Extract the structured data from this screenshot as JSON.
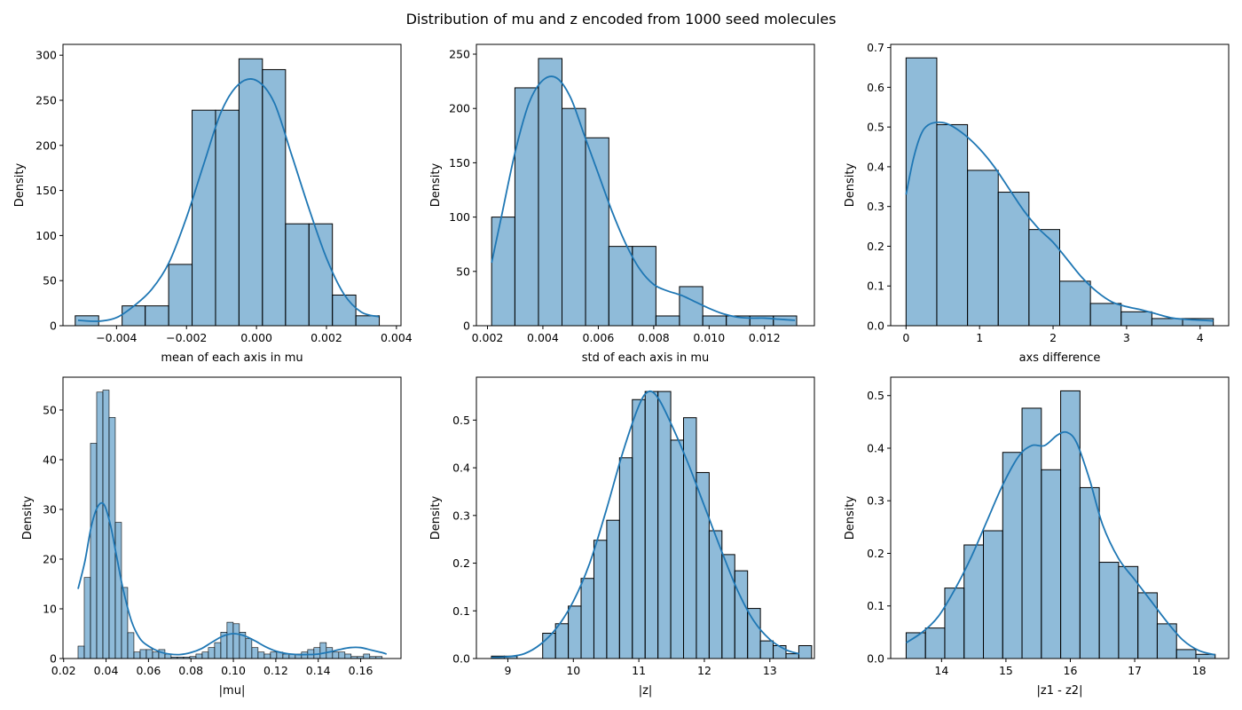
{
  "figure": {
    "title": "Distribution of mu and z encoded from 1000 seed molecules"
  },
  "colors": {
    "bar_fill": "#1f77b4",
    "bar_opacity": 0.5,
    "bar_edge": "#000000",
    "kde_line": "#1f77b4",
    "axes": "#000000"
  },
  "chart_data": [
    {
      "type": "bar",
      "histogram": true,
      "xlabel": "mean of each axis in mu",
      "ylabel": "Density",
      "xlim": [
        -0.00553,
        0.00413
      ],
      "ylim": [
        0,
        312
      ],
      "xticks": [
        -0.004,
        -0.002,
        0.0,
        0.002,
        0.004
      ],
      "xtick_labels": [
        "−0.004",
        "−0.002",
        "0.000",
        "0.002",
        "0.004"
      ],
      "yticks": [
        0,
        50,
        100,
        150,
        200,
        250,
        300
      ],
      "ytick_labels": [
        "0",
        "50",
        "100",
        "150",
        "200",
        "250",
        "300"
      ],
      "bin_edges": [
        -0.00518,
        -0.00451,
        -0.00384,
        -0.00318,
        -0.00251,
        -0.00184,
        -0.00117,
        -0.0005,
        0.00017,
        0.00083,
        0.0015,
        0.00217,
        0.00284,
        0.00351
      ],
      "values": [
        11,
        0,
        22,
        22,
        68,
        239,
        239,
        296,
        284,
        113,
        113,
        34,
        11
      ],
      "kde": {
        "x": [
          -0.0051,
          -0.0045,
          -0.004,
          -0.0035,
          -0.003,
          -0.0025,
          -0.002,
          -0.0015,
          -0.001,
          -0.0005,
          0.0,
          0.0005,
          0.001,
          0.0015,
          0.002,
          0.0025,
          0.003,
          0.0035
        ],
        "y": [
          6,
          5,
          9,
          22,
          40,
          70,
          120,
          180,
          238,
          268,
          272,
          248,
          190,
          130,
          75,
          35,
          15,
          10
        ]
      }
    },
    {
      "type": "bar",
      "histogram": true,
      "xlabel": "std of each axis in mu",
      "ylabel": "Density",
      "xlim": [
        0.0016,
        0.0138
      ],
      "ylim": [
        0,
        259
      ],
      "xticks": [
        0.002,
        0.004,
        0.006,
        0.008,
        0.01,
        0.012
      ],
      "xtick_labels": [
        "0.002",
        "0.004",
        "0.006",
        "0.008",
        "0.010",
        "0.012"
      ],
      "yticks": [
        0,
        50,
        100,
        150,
        200,
        250
      ],
      "ytick_labels": [
        "0",
        "50",
        "100",
        "150",
        "200",
        "250"
      ],
      "bin_edges": [
        0.00215,
        0.00299,
        0.00384,
        0.00469,
        0.00554,
        0.00638,
        0.00723,
        0.00808,
        0.00893,
        0.00977,
        0.01062,
        0.01147,
        0.01232,
        0.01316
      ],
      "values": [
        100,
        219,
        246,
        200,
        173,
        73,
        73,
        9,
        36,
        9,
        9,
        9,
        9
      ],
      "kde": {
        "x": [
          0.00215,
          0.0025,
          0.003,
          0.0035,
          0.004,
          0.0045,
          0.005,
          0.0055,
          0.006,
          0.0065,
          0.007,
          0.0075,
          0.008,
          0.0085,
          0.009,
          0.0095,
          0.01,
          0.0105,
          0.011,
          0.0115,
          0.012,
          0.0125,
          0.0131
        ],
        "y": [
          58,
          100,
          160,
          205,
          226,
          228,
          210,
          175,
          140,
          105,
          75,
          52,
          38,
          32,
          28,
          22,
          16,
          11,
          8,
          7,
          7,
          6,
          5
        ]
      }
    },
    {
      "type": "bar",
      "histogram": true,
      "xlabel": "axs difference",
      "ylabel": "Density",
      "xlim": [
        -0.209,
        4.389
      ],
      "ylim": [
        0,
        0.708
      ],
      "xticks": [
        0,
        1,
        2,
        3,
        4
      ],
      "xtick_labels": [
        "0",
        "1",
        "2",
        "3",
        "4"
      ],
      "yticks": [
        0,
        0.1,
        0.2,
        0.3,
        0.4,
        0.5,
        0.6,
        0.7
      ],
      "ytick_labels": [
        "0.0",
        "0.1",
        "0.2",
        "0.3",
        "0.4",
        "0.5",
        "0.6",
        "0.7"
      ],
      "bin_edges": [
        0.0,
        0.418,
        0.836,
        1.254,
        1.672,
        2.09,
        2.508,
        2.926,
        3.344,
        3.762,
        4.18
      ],
      "values": [
        0.674,
        0.506,
        0.391,
        0.336,
        0.242,
        0.112,
        0.056,
        0.035,
        0.018,
        0.018
      ],
      "kde": {
        "x": [
          0.0,
          0.1,
          0.2,
          0.3,
          0.45,
          0.6,
          0.8,
          1.0,
          1.2,
          1.4,
          1.6,
          1.8,
          2.0,
          2.2,
          2.4,
          2.6,
          2.8,
          3.0,
          3.2,
          3.4,
          3.6,
          3.8,
          4.0,
          4.18
        ],
        "y": [
          0.33,
          0.42,
          0.48,
          0.505,
          0.512,
          0.505,
          0.48,
          0.445,
          0.4,
          0.345,
          0.29,
          0.245,
          0.21,
          0.165,
          0.12,
          0.085,
          0.06,
          0.048,
          0.04,
          0.03,
          0.02,
          0.016,
          0.014,
          0.012
        ]
      }
    },
    {
      "type": "bar",
      "histogram": true,
      "xlabel": "|mu|",
      "ylabel": "Density",
      "xlim": [
        0.0197,
        0.179
      ],
      "ylim": [
        0,
        56.6
      ],
      "xticks": [
        0.02,
        0.04,
        0.06,
        0.08,
        0.1,
        0.12,
        0.14,
        0.16
      ],
      "xtick_labels": [
        "0.02",
        "0.04",
        "0.06",
        "0.08",
        "0.10",
        "0.12",
        "0.14",
        "0.16"
      ],
      "yticks": [
        0,
        10,
        20,
        30,
        40,
        50
      ],
      "ytick_labels": [
        "0",
        "10",
        "20",
        "30",
        "40",
        "50"
      ],
      "bin_start": 0.0268,
      "bin_width": 0.002925,
      "values": [
        2.5,
        16.3,
        43.3,
        53.6,
        54.0,
        48.5,
        27.4,
        14.3,
        5.2,
        1.3,
        1.8,
        1.8,
        1.3,
        1.8,
        0.9,
        0.3,
        0.3,
        0.3,
        0.4,
        0.9,
        1.3,
        2.2,
        3.2,
        5.3,
        7.3,
        7.0,
        5.3,
        4.0,
        2.2,
        1.3,
        0.9,
        1.3,
        1.3,
        0.9,
        0.9,
        0.9,
        1.3,
        1.8,
        2.2,
        3.2,
        2.2,
        1.3,
        1.3,
        0.9,
        0.4,
        0.4,
        0.9,
        0.4,
        0.4,
        0.0
      ],
      "kde": {
        "x": [
          0.0268,
          0.03,
          0.033,
          0.036,
          0.039,
          0.042,
          0.045,
          0.048,
          0.052,
          0.056,
          0.06,
          0.065,
          0.07,
          0.075,
          0.08,
          0.085,
          0.09,
          0.095,
          0.1,
          0.105,
          0.11,
          0.115,
          0.12,
          0.125,
          0.13,
          0.135,
          0.14,
          0.145,
          0.15,
          0.155,
          0.16,
          0.165,
          0.17,
          0.1722
        ],
        "y": [
          14.0,
          19.5,
          26.5,
          30.5,
          31.0,
          27.0,
          20.5,
          14.0,
          7.5,
          4.0,
          2.5,
          1.4,
          0.9,
          0.8,
          1.2,
          2.0,
          3.3,
          4.5,
          5.0,
          4.6,
          3.6,
          2.4,
          1.5,
          1.0,
          0.8,
          0.8,
          0.9,
          1.3,
          1.8,
          2.2,
          2.2,
          1.7,
          1.2,
          0.9
        ]
      }
    },
    {
      "type": "bar",
      "histogram": true,
      "xlabel": "|z|",
      "ylabel": "Density",
      "xlim": [
        8.52,
        13.68
      ],
      "ylim": [
        0,
        0.59
      ],
      "xticks": [
        9,
        10,
        11,
        12,
        13
      ],
      "xtick_labels": [
        "9",
        "10",
        "11",
        "12",
        "13"
      ],
      "yticks": [
        0,
        0.1,
        0.2,
        0.3,
        0.4,
        0.5
      ],
      "ytick_labels": [
        "0.0",
        "0.1",
        "0.2",
        "0.3",
        "0.4",
        "0.5"
      ],
      "bin_start": 8.75,
      "bin_width": 0.1955,
      "values": [
        0.005,
        0.005,
        0.0,
        0.0,
        0.053,
        0.073,
        0.11,
        0.168,
        0.248,
        0.29,
        0.421,
        0.543,
        0.56,
        0.56,
        0.458,
        0.505,
        0.39,
        0.268,
        0.218,
        0.184,
        0.105,
        0.037,
        0.027,
        0.01,
        0.027
      ],
      "kde": {
        "x": [
          8.75,
          9.0,
          9.25,
          9.5,
          9.75,
          10.0,
          10.25,
          10.5,
          10.75,
          11.0,
          11.15,
          11.3,
          11.5,
          11.75,
          12.0,
          12.25,
          12.5,
          12.75,
          13.0,
          13.25,
          13.45
        ],
        "y": [
          0.002,
          0.004,
          0.01,
          0.03,
          0.065,
          0.12,
          0.2,
          0.31,
          0.43,
          0.53,
          0.56,
          0.545,
          0.49,
          0.41,
          0.32,
          0.23,
          0.145,
          0.08,
          0.04,
          0.018,
          0.01
        ]
      }
    },
    {
      "type": "bar",
      "histogram": true,
      "xlabel": "|z1 - z2|",
      "ylabel": "Density",
      "xlim": [
        13.21,
        18.46
      ],
      "ylim": [
        0,
        0.535
      ],
      "xticks": [
        14,
        15,
        16,
        17,
        18
      ],
      "xtick_labels": [
        "14",
        "15",
        "16",
        "17",
        "18"
      ],
      "yticks": [
        0,
        0.1,
        0.2,
        0.3,
        0.4,
        0.5
      ],
      "ytick_labels": [
        "0.0",
        "0.1",
        "0.2",
        "0.3",
        "0.4",
        "0.5"
      ],
      "bin_start": 13.45,
      "bin_width": 0.3,
      "values": [
        0.049,
        0.058,
        0.134,
        0.216,
        0.243,
        0.392,
        0.476,
        0.359,
        0.509,
        0.325,
        0.183,
        0.175,
        0.125,
        0.066,
        0.017,
        0.008
      ],
      "kde": {
        "x": [
          13.45,
          13.7,
          13.95,
          14.2,
          14.45,
          14.7,
          14.95,
          15.2,
          15.4,
          15.6,
          15.8,
          15.95,
          16.1,
          16.3,
          16.5,
          16.75,
          17.0,
          17.25,
          17.5,
          17.75,
          18.0,
          18.25
        ],
        "y": [
          0.03,
          0.05,
          0.08,
          0.13,
          0.19,
          0.26,
          0.33,
          0.385,
          0.405,
          0.405,
          0.425,
          0.43,
          0.41,
          0.34,
          0.255,
          0.19,
          0.15,
          0.11,
          0.07,
          0.035,
          0.015,
          0.007
        ]
      }
    }
  ]
}
